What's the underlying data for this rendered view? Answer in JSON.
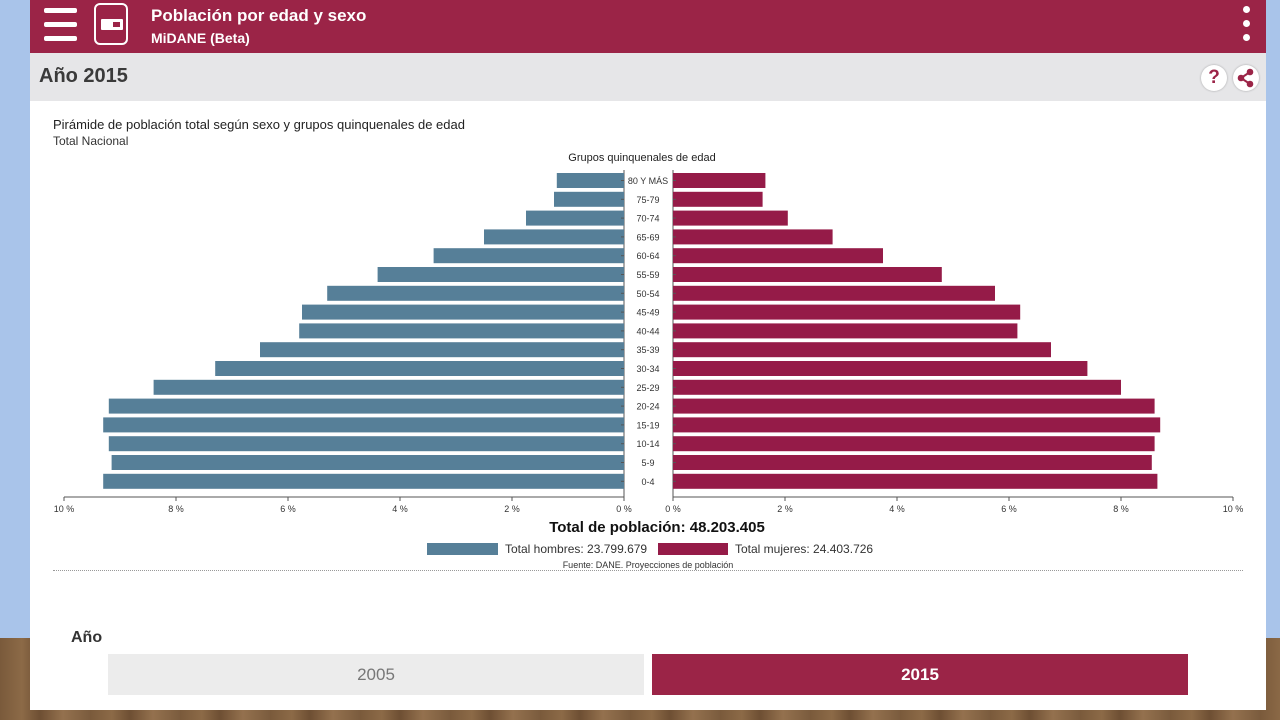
{
  "header": {
    "title": "Población por edad y sexo",
    "subtitle": "MiDANE (Beta)"
  },
  "year_bar": {
    "heading": "Año 2015",
    "help_glyph": "?",
    "icons": [
      "menu-icon",
      "app-logo-icon",
      "more-vert-icon",
      "help-icon",
      "share-icon"
    ]
  },
  "chart_data": {
    "type": "bar",
    "orientation": "horizontal-pyramid",
    "title": "Pirámide de población total según sexo y grupos quinquenales de edad",
    "subtitle": "Total Nacional",
    "category_axis_label": "Grupos quinquenales de edad",
    "categories": [
      "80 Y MÁS",
      "75-79",
      "70-74",
      "65-69",
      "60-64",
      "55-59",
      "50-54",
      "45-49",
      "40-44",
      "35-39",
      "30-34",
      "25-29",
      "20-24",
      "15-19",
      "10-14",
      "5-9",
      "0-4"
    ],
    "series": [
      {
        "name": "Total hombres",
        "color": "#567f98",
        "values": [
          1.2,
          1.25,
          1.75,
          2.5,
          3.4,
          4.4,
          5.3,
          5.75,
          5.8,
          6.5,
          7.3,
          8.4,
          9.2,
          9.3,
          9.2,
          9.15,
          9.3
        ]
      },
      {
        "name": "Total mujeres",
        "color": "#951b48",
        "values": [
          1.65,
          1.6,
          2.05,
          2.85,
          3.75,
          4.8,
          5.75,
          6.2,
          6.15,
          6.75,
          7.4,
          8.0,
          8.6,
          8.7,
          8.6,
          8.55,
          8.65
        ]
      }
    ],
    "x_ticks": [
      "10 %",
      "8 %",
      "6 %",
      "4 %",
      "2 %",
      "0 %"
    ],
    "xlim": [
      0,
      10
    ],
    "total_label": "Total de población: 48.203.405",
    "legend": [
      "Total hombres: 23.799.679",
      "Total mujeres: 24.403.726"
    ],
    "source": "Fuente: DANE. Proyecciones de población",
    "grid": false,
    "legend_position": "bottom-center"
  },
  "year_selector": {
    "label": "Año",
    "options": [
      "2005",
      "2015"
    ],
    "selected": "2015"
  }
}
